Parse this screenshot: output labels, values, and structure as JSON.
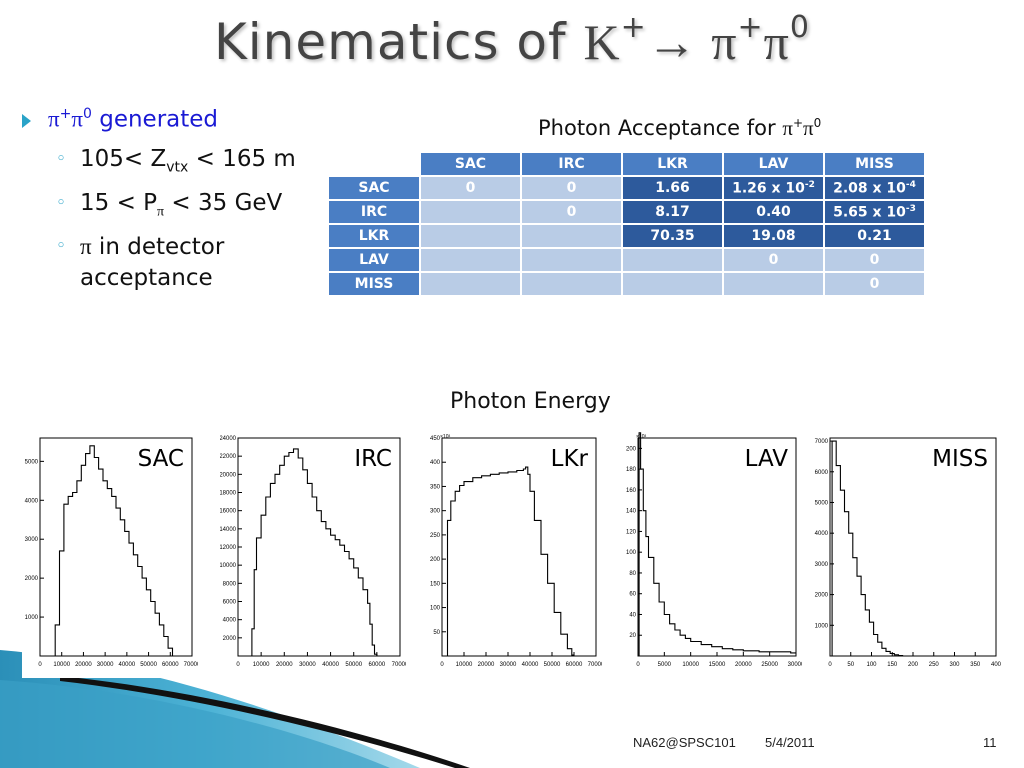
{
  "title": {
    "prefix": "Kinematics of ",
    "k": "K",
    "k_sup": "+",
    "arrow": "→",
    "pi1": " π",
    "pi1_sup": "+",
    "pi2": "π",
    "pi2_sup": "0"
  },
  "bullets": {
    "main": {
      "pi": "π",
      "sup1": "+",
      "pi2": "π",
      "sup2": "0",
      "text": " generated"
    },
    "sub1": {
      "a": "105< Z",
      "sub": "vtx",
      "b": " < 165 m"
    },
    "sub2": {
      "a": "15 < P",
      "sub": "π",
      "b": " < 35 GeV"
    },
    "sub3": {
      "pi": "π",
      "text": " in detector acceptance"
    }
  },
  "table": {
    "title": "Photon Acceptance for ",
    "title_pi": "π",
    "title_sup1": "+",
    "title_pi2": "π",
    "title_sup2": "0",
    "columns": [
      "SAC",
      "IRC",
      "LKR",
      "LAV",
      "MISS"
    ],
    "rows": [
      {
        "label": "SAC",
        "cells": [
          "0",
          "0",
          "1.66",
          "1.26 x 10",
          "2.08 x 10"
        ],
        "sups": [
          "",
          "",
          "",
          "-2",
          "-4"
        ]
      },
      {
        "label": "IRC",
        "cells": [
          "",
          "0",
          "8.17",
          "0.40",
          "5.65 x 10"
        ],
        "sups": [
          "",
          "",
          "",
          "",
          "-3"
        ]
      },
      {
        "label": "LKR",
        "cells": [
          "",
          "",
          "70.35",
          "19.08",
          "0.21"
        ],
        "sups": [
          "",
          "",
          "",
          "",
          ""
        ]
      },
      {
        "label": "LAV",
        "cells": [
          "",
          "",
          "",
          "0",
          "0"
        ],
        "sups": [
          "",
          "",
          "",
          "",
          ""
        ]
      },
      {
        "label": "MISS",
        "cells": [
          "",
          "",
          "",
          "",
          "0"
        ],
        "sups": [
          "",
          "",
          "",
          "",
          ""
        ]
      }
    ]
  },
  "energy_title": "Photon Energy",
  "colors": {
    "accent": "#2aa3c8",
    "table_header": "#4a7ec4",
    "table_light": "#b9cce6",
    "table_dark": "#2d5a9c",
    "bullet_blue": "#1a1ad4"
  },
  "chart_data": [
    {
      "type": "area",
      "label": "SAC",
      "xlim": [
        0,
        70000
      ],
      "xticks": [
        "0",
        "10000",
        "20000",
        "30000",
        "40000",
        "50000",
        "60000",
        "70000"
      ],
      "yticks": [
        "1000",
        "2000",
        "3000",
        "4000",
        "5000"
      ],
      "ylim": [
        0,
        5600
      ],
      "x": [
        0,
        5000,
        7000,
        9000,
        11000,
        13000,
        15000,
        17000,
        19000,
        21000,
        23000,
        25000,
        27000,
        29000,
        31000,
        33000,
        35000,
        37000,
        39000,
        41000,
        43000,
        45000,
        47000,
        49000,
        51000,
        53000,
        55000,
        57000,
        59000,
        61000,
        62000
      ],
      "values": [
        0,
        0,
        800,
        2700,
        3900,
        4100,
        4200,
        4500,
        4900,
        5200,
        5400,
        5100,
        4800,
        4500,
        4300,
        4100,
        3800,
        3500,
        3200,
        2900,
        2600,
        2300,
        2000,
        1700,
        1400,
        1100,
        800,
        500,
        200,
        0,
        0
      ]
    },
    {
      "type": "area",
      "label": "IRC",
      "xlim": [
        0,
        70000
      ],
      "xticks": [
        "0",
        "10000",
        "20000",
        "30000",
        "40000",
        "50000",
        "60000",
        "70000"
      ],
      "yticks": [
        "2000",
        "4000",
        "6000",
        "8000",
        "10000",
        "12000",
        "14000",
        "16000",
        "18000",
        "20000",
        "22000",
        "24000"
      ],
      "ylim": [
        0,
        24000
      ],
      "x": [
        0,
        5000,
        6000,
        7000,
        8000,
        10000,
        12000,
        14000,
        16000,
        18000,
        20000,
        22000,
        24000,
        26000,
        28000,
        30000,
        32000,
        34000,
        36000,
        38000,
        40000,
        42000,
        44000,
        46000,
        48000,
        50000,
        52000,
        54000,
        56000,
        57000,
        58000,
        59000,
        60000
      ],
      "values": [
        0,
        0,
        3000,
        9500,
        13000,
        15500,
        17500,
        19000,
        20000,
        21000,
        22000,
        22400,
        22800,
        21800,
        20500,
        19000,
        17500,
        16000,
        14800,
        14000,
        13300,
        12800,
        12200,
        11500,
        10700,
        9700,
        8600,
        7300,
        5800,
        3500,
        1200,
        200,
        0
      ]
    },
    {
      "type": "area",
      "label": "LKr",
      "xlim": [
        0,
        70000
      ],
      "y_multiplier": "×10³",
      "xticks": [
        "0",
        "10000",
        "20000",
        "30000",
        "40000",
        "50000",
        "60000",
        "70000"
      ],
      "yticks": [
        "50",
        "100",
        "150",
        "200",
        "250",
        "300",
        "350",
        "400",
        "450"
      ],
      "ylim": [
        0,
        450
      ],
      "x": [
        0,
        1500,
        2500,
        4000,
        6000,
        8000,
        10000,
        14000,
        18000,
        22000,
        26000,
        30000,
        34000,
        37000,
        38000,
        39000,
        40000,
        42000,
        45000,
        48000,
        51000,
        54000,
        57000,
        59000,
        60000
      ],
      "values": [
        0,
        0,
        280,
        320,
        340,
        352,
        360,
        368,
        372,
        375,
        378,
        380,
        383,
        386,
        390,
        375,
        340,
        280,
        210,
        150,
        90,
        45,
        15,
        2,
        0
      ]
    },
    {
      "type": "area",
      "label": "LAV",
      "xlim": [
        0,
        30000
      ],
      "y_multiplier": "×10³",
      "xticks": [
        "0",
        "5000",
        "10000",
        "15000",
        "20000",
        "25000",
        "30000"
      ],
      "yticks": [
        "20",
        "40",
        "60",
        "80",
        "100",
        "120",
        "140",
        "160",
        "180",
        "200"
      ],
      "ylim": [
        0,
        210
      ],
      "x": [
        0,
        200,
        500,
        1000,
        1500,
        2000,
        3000,
        4000,
        5000,
        6000,
        7000,
        8000,
        9000,
        10000,
        12000,
        14000,
        16000,
        18000,
        20000,
        23000,
        26000,
        29000,
        30000
      ],
      "values": [
        0,
        215,
        180,
        140,
        115,
        95,
        70,
        52,
        40,
        31,
        25,
        20,
        17,
        14,
        11,
        9,
        7,
        6,
        5,
        4,
        4,
        3,
        3
      ]
    },
    {
      "type": "area",
      "label": "MISS",
      "xlim": [
        0,
        400
      ],
      "xticks": [
        "0",
        "50",
        "100",
        "150",
        "200",
        "250",
        "300",
        "350",
        "400"
      ],
      "yticks": [
        "1000",
        "2000",
        "3000",
        "4000",
        "5000",
        "6000",
        "7000"
      ],
      "ylim": [
        0,
        7100
      ],
      "x": [
        0,
        5,
        15,
        25,
        35,
        45,
        55,
        65,
        75,
        85,
        95,
        105,
        115,
        125,
        135,
        145,
        155,
        165,
        175,
        400
      ],
      "values": [
        0,
        7000,
        6200,
        5400,
        4700,
        4000,
        3200,
        2600,
        2000,
        1500,
        1100,
        700,
        450,
        250,
        150,
        80,
        40,
        15,
        0,
        0
      ]
    }
  ],
  "footer": {
    "event": "NA62@SPSC101",
    "date": "5/4/2011",
    "page": "11"
  }
}
